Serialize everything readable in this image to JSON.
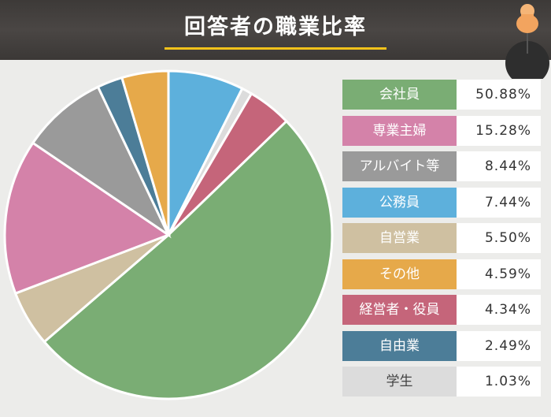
{
  "header": {
    "title": "回答者の職業比率"
  },
  "colors": {
    "header_bg": "#403c3a",
    "accent": "#f2c21b",
    "background": "#ececea"
  },
  "chart_data": {
    "type": "pie",
    "title": "回答者の職業比率",
    "legend_position": "right",
    "slices": [
      {
        "label": "会社員",
        "value": 50.88,
        "display": "50.88%",
        "color": "#7aad74",
        "label_text_color": "#ffffff"
      },
      {
        "label": "専業主婦",
        "value": 15.28,
        "display": "15.28%",
        "color": "#d482a9",
        "label_text_color": "#ffffff"
      },
      {
        "label": "アルバイト等",
        "value": 8.44,
        "display": "8.44%",
        "color": "#9a9a9a",
        "label_text_color": "#ffffff"
      },
      {
        "label": "公務員",
        "value": 7.44,
        "display": "7.44%",
        "color": "#5db0dc",
        "label_text_color": "#ffffff"
      },
      {
        "label": "自営業",
        "value": 5.5,
        "display": "5.50%",
        "color": "#cfc0a1",
        "label_text_color": "#ffffff"
      },
      {
        "label": "その他",
        "value": 4.59,
        "display": "4.59%",
        "color": "#e6a94a",
        "label_text_color": "#ffffff"
      },
      {
        "label": "経営者・役員",
        "value": 4.34,
        "display": "4.34%",
        "color": "#c5657a",
        "label_text_color": "#ffffff"
      },
      {
        "label": "自由業",
        "value": 2.49,
        "display": "2.49%",
        "color": "#4c7d98",
        "label_text_color": "#ffffff"
      },
      {
        "label": "学生",
        "value": 1.03,
        "display": "1.03%",
        "color": "#dcdcdc",
        "label_text_color": "#444444"
      }
    ],
    "pie_order": [
      "公務員",
      "学生",
      "経営者・役員",
      "会社員",
      "自営業",
      "専業主婦",
      "アルバイト等",
      "自由業",
      "その他"
    ]
  }
}
